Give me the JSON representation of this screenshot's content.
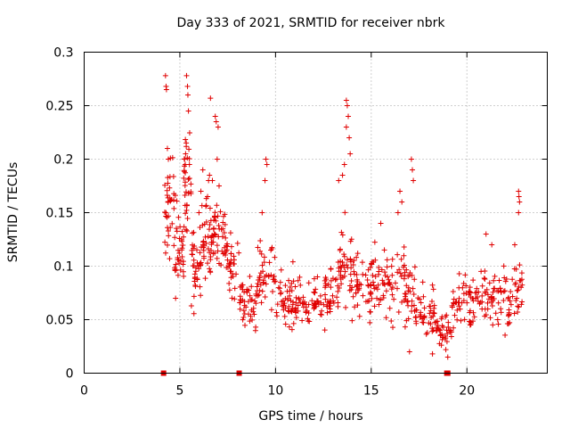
{
  "chart_data": {
    "type": "scatter",
    "title": "Day 333 of 2021, SRMTID for receiver nbrk",
    "xlabel": "GPS time / hours",
    "ylabel": "SRMTID / TECUs",
    "xlim": [
      0,
      24.2
    ],
    "ylim": [
      0,
      0.3
    ],
    "x_ticks": [
      0,
      5,
      10,
      15,
      20
    ],
    "x_tick_labels": [
      "0",
      "5",
      "10",
      "15",
      "20"
    ],
    "y_ticks": [
      0,
      0.05,
      0.1,
      0.15,
      0.2,
      0.25,
      0.3
    ],
    "y_tick_labels": [
      "0",
      "0.05",
      "0.1",
      "0.15",
      "0.2",
      "0.25",
      "0.3"
    ],
    "grid": true,
    "marker": "plus",
    "color": "#e00000",
    "series": [
      {
        "name": "SRMTID",
        "segments": [
          {
            "start": 4.2,
            "end": 4.7,
            "n": 35,
            "base": 0.16,
            "spread": 0.05
          },
          {
            "start": 4.7,
            "end": 5.2,
            "n": 35,
            "base": 0.11,
            "spread": 0.04
          },
          {
            "start": 5.2,
            "end": 5.6,
            "n": 35,
            "base": 0.17,
            "spread": 0.05
          },
          {
            "start": 5.6,
            "end": 6.1,
            "n": 35,
            "base": 0.1,
            "spread": 0.04
          },
          {
            "start": 6.1,
            "end": 6.7,
            "n": 40,
            "base": 0.13,
            "spread": 0.04
          },
          {
            "start": 6.7,
            "end": 7.4,
            "n": 40,
            "base": 0.13,
            "spread": 0.035
          },
          {
            "start": 7.4,
            "end": 8.1,
            "n": 35,
            "base": 0.1,
            "spread": 0.03
          },
          {
            "start": 8.1,
            "end": 9.0,
            "n": 45,
            "base": 0.07,
            "spread": 0.025
          },
          {
            "start": 9.0,
            "end": 10.0,
            "n": 45,
            "base": 0.09,
            "spread": 0.035
          },
          {
            "start": 10.0,
            "end": 11.0,
            "n": 45,
            "base": 0.07,
            "spread": 0.025
          },
          {
            "start": 11.0,
            "end": 12.5,
            "n": 60,
            "base": 0.065,
            "spread": 0.022
          },
          {
            "start": 12.5,
            "end": 13.3,
            "n": 40,
            "base": 0.075,
            "spread": 0.03
          },
          {
            "start": 13.3,
            "end": 14.0,
            "n": 40,
            "base": 0.1,
            "spread": 0.04
          },
          {
            "start": 14.0,
            "end": 15.0,
            "n": 45,
            "base": 0.08,
            "spread": 0.03
          },
          {
            "start": 15.0,
            "end": 16.0,
            "n": 45,
            "base": 0.085,
            "spread": 0.03
          },
          {
            "start": 16.0,
            "end": 17.3,
            "n": 55,
            "base": 0.08,
            "spread": 0.035
          },
          {
            "start": 17.3,
            "end": 18.4,
            "n": 45,
            "base": 0.055,
            "spread": 0.02
          },
          {
            "start": 18.4,
            "end": 19.2,
            "n": 35,
            "base": 0.04,
            "spread": 0.015
          },
          {
            "start": 19.2,
            "end": 20.4,
            "n": 50,
            "base": 0.065,
            "spread": 0.025
          },
          {
            "start": 20.4,
            "end": 21.8,
            "n": 55,
            "base": 0.075,
            "spread": 0.025
          },
          {
            "start": 21.8,
            "end": 22.9,
            "n": 45,
            "base": 0.07,
            "spread": 0.03
          }
        ],
        "peaks": [
          [
            4.25,
            0.278
          ],
          [
            4.28,
            0.268
          ],
          [
            4.3,
            0.265
          ],
          [
            4.35,
            0.21
          ],
          [
            4.4,
            0.2
          ],
          [
            5.35,
            0.278
          ],
          [
            5.4,
            0.268
          ],
          [
            5.42,
            0.26
          ],
          [
            5.45,
            0.245
          ],
          [
            5.3,
            0.205
          ],
          [
            5.25,
            0.2
          ],
          [
            5.5,
            0.195
          ],
          [
            6.2,
            0.19
          ],
          [
            6.5,
            0.18
          ],
          [
            6.1,
            0.17
          ],
          [
            6.0,
            0.15
          ],
          [
            6.45,
            0.165
          ],
          [
            6.55,
            0.185
          ],
          [
            6.6,
            0.257
          ],
          [
            6.85,
            0.24
          ],
          [
            6.9,
            0.235
          ],
          [
            7.0,
            0.23
          ],
          [
            6.95,
            0.2
          ],
          [
            7.05,
            0.175
          ],
          [
            6.7,
            0.18
          ],
          [
            9.5,
            0.2
          ],
          [
            9.55,
            0.195
          ],
          [
            9.45,
            0.18
          ],
          [
            9.3,
            0.15
          ],
          [
            13.7,
            0.255
          ],
          [
            13.75,
            0.25
          ],
          [
            13.8,
            0.24
          ],
          [
            13.7,
            0.23
          ],
          [
            13.85,
            0.22
          ],
          [
            13.9,
            0.205
          ],
          [
            13.6,
            0.195
          ],
          [
            13.5,
            0.185
          ],
          [
            13.3,
            0.18
          ],
          [
            16.5,
            0.17
          ],
          [
            16.6,
            0.16
          ],
          [
            17.1,
            0.2
          ],
          [
            17.15,
            0.19
          ],
          [
            17.2,
            0.18
          ],
          [
            16.4,
            0.15
          ],
          [
            15.5,
            0.14
          ],
          [
            21.0,
            0.13
          ],
          [
            21.3,
            0.12
          ],
          [
            22.7,
            0.17
          ],
          [
            22.72,
            0.165
          ],
          [
            22.75,
            0.16
          ],
          [
            22.7,
            0.15
          ],
          [
            22.5,
            0.12
          ],
          [
            17.0,
            0.02
          ],
          [
            18.2,
            0.018
          ],
          [
            18.9,
            0.022
          ],
          [
            19.0,
            0.015
          ]
        ]
      }
    ],
    "zero_markers_x": [
      4.15,
      8.1,
      18.95,
      19.0
    ]
  }
}
